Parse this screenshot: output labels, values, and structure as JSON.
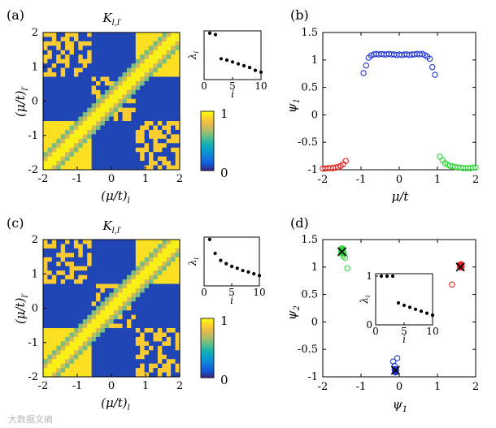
{
  "chart_data": [
    {
      "panel": "(a)",
      "type": "heatmap",
      "title": "K_{l,l'}",
      "xlabel": "(μ/t)_l",
      "ylabel": "(μ/t)_l'",
      "xticks": [
        "-2",
        "-1",
        "0",
        "1",
        "2"
      ],
      "yticks": [
        "2",
        "1",
        "0",
        "-1",
        "-2"
      ],
      "xlim": [
        -2,
        2
      ],
      "ylim": [
        -2,
        2
      ],
      "grid_size": 31,
      "colormap": "parula",
      "colorbar": {
        "ticks": [
          "1",
          "0"
        ],
        "range": [
          0,
          1
        ]
      },
      "inset": {
        "type": "scatter",
        "xlabel": "i",
        "ylabel": "λ_i",
        "xticks": [
          "0",
          "5",
          "10"
        ],
        "x": [
          1,
          2,
          3,
          4,
          5,
          6,
          7,
          8,
          9,
          10
        ],
        "y": [
          1.0,
          0.97,
          0.45,
          0.42,
          0.38,
          0.34,
          0.3,
          0.26,
          0.2,
          0.16
        ],
        "ylim": [
          0,
          1.05
        ]
      }
    },
    {
      "panel": "(b)",
      "type": "scatter",
      "xlabel": "μ/t",
      "ylabel": "ψ_1",
      "xlim": [
        -2,
        2
      ],
      "ylim": [
        -1,
        1.5
      ],
      "xticks": [
        "-2",
        "-1",
        "0",
        "1",
        "2"
      ],
      "yticks": [
        "1.5",
        "1",
        "0.5",
        "0",
        "-0.5",
        "-1"
      ],
      "series": [
        {
          "name": "red",
          "color": "#e8231f",
          "x": [
            -2.0,
            -1.933,
            -1.867,
            -1.8,
            -1.733,
            -1.667,
            -1.6,
            -1.533,
            -1.467,
            -1.4
          ],
          "y": [
            -0.98,
            -0.98,
            -0.97,
            -0.97,
            -0.97,
            -0.96,
            -0.95,
            -0.93,
            -0.9,
            -0.84
          ]
        },
        {
          "name": "blue",
          "color": "#2437d4",
          "x": [
            -0.933,
            -0.867,
            -0.8,
            -0.733,
            -0.667,
            -0.6,
            -0.533,
            -0.467,
            -0.4,
            -0.333,
            -0.267,
            -0.2,
            -0.133,
            -0.067,
            0.0,
            0.067,
            0.133,
            0.2,
            0.267,
            0.333,
            0.4,
            0.467,
            0.533,
            0.6,
            0.667,
            0.733,
            0.8,
            0.867,
            0.933
          ],
          "y": [
            0.76,
            0.9,
            1.04,
            1.08,
            1.1,
            1.11,
            1.1,
            1.11,
            1.1,
            1.1,
            1.11,
            1.1,
            1.1,
            1.09,
            1.1,
            1.09,
            1.1,
            1.1,
            1.09,
            1.1,
            1.1,
            1.11,
            1.1,
            1.11,
            1.09,
            1.06,
            1.02,
            0.87,
            0.73
          ]
        },
        {
          "name": "green",
          "color": "#2fd63a",
          "x": [
            1.067,
            1.133,
            1.2,
            1.267,
            1.333,
            1.4,
            1.467,
            1.533,
            1.6,
            1.667,
            1.733,
            1.8,
            1.867,
            1.933,
            2.0
          ],
          "y": [
            -0.76,
            -0.83,
            -0.88,
            -0.91,
            -0.93,
            -0.94,
            -0.95,
            -0.96,
            -0.96,
            -0.97,
            -0.97,
            -0.97,
            -0.97,
            -0.96,
            -0.96
          ]
        }
      ]
    },
    {
      "panel": "(c)",
      "type": "heatmap",
      "title": "K_{l,l'}",
      "xlabel": "(μ/t)_l",
      "ylabel": "(μ/t)_l'",
      "xticks": [
        "-2",
        "-1",
        "0",
        "1",
        "2"
      ],
      "yticks": [
        "2",
        "1",
        "0",
        "-1",
        "-2"
      ],
      "xlim": [
        -2,
        2
      ],
      "ylim": [
        -2,
        2
      ],
      "grid_size": 31,
      "colormap": "parula",
      "colorbar": {
        "ticks": [
          "1",
          "0"
        ],
        "range": [
          0,
          1
        ]
      },
      "inset": {
        "type": "scatter",
        "xlabel": "i",
        "ylabel": "λ_i",
        "xticks": [
          "0",
          "5",
          "10"
        ],
        "x": [
          1,
          2,
          3,
          4,
          5,
          6,
          7,
          8,
          9,
          10
        ],
        "y": [
          1.0,
          0.7,
          0.55,
          0.48,
          0.42,
          0.38,
          0.33,
          0.3,
          0.26,
          0.22
        ],
        "ylim": [
          0,
          1.05
        ]
      }
    },
    {
      "panel": "(d)",
      "type": "scatter",
      "xlabel": "ψ_1",
      "ylabel": "ψ_2",
      "xlim": [
        -2,
        2
      ],
      "ylim": [
        -1,
        1.5
      ],
      "xticks": [
        "-2",
        "-1",
        "0",
        "1",
        "2"
      ],
      "yticks": [
        "1.5",
        "1",
        "0.5",
        "0",
        "-0.5",
        "-1"
      ],
      "series": [
        {
          "name": "green",
          "color": "#2fd63a",
          "x": [
            -1.5,
            -1.48,
            -1.52,
            -1.47,
            -1.5,
            -1.49,
            -1.51,
            -1.46,
            -1.5,
            -1.45,
            -1.42,
            -1.48,
            -1.5,
            -1.47,
            -1.36
          ],
          "y": [
            1.32,
            1.3,
            1.28,
            1.33,
            1.25,
            1.29,
            1.34,
            1.27,
            1.3,
            1.24,
            1.17,
            1.31,
            1.26,
            1.2,
            0.98
          ]
        },
        {
          "name": "blue",
          "color": "#2437d4",
          "x": [
            -0.12,
            -0.1,
            -0.09,
            -0.11,
            -0.1,
            -0.08,
            -0.1,
            -0.09,
            -0.12,
            -0.1,
            -0.11,
            -0.09,
            -0.1,
            -0.1,
            -0.11,
            -0.09,
            -0.1,
            -0.1,
            -0.09,
            -0.1,
            -0.11,
            -0.1,
            -0.1,
            -0.09,
            -0.1,
            -0.16,
            -0.05,
            -0.12,
            -0.1
          ],
          "y": [
            -0.86,
            -0.88,
            -0.9,
            -0.87,
            -0.89,
            -0.88,
            -0.91,
            -0.86,
            -0.88,
            -0.9,
            -0.87,
            -0.89,
            -0.88,
            -0.9,
            -0.86,
            -0.89,
            -0.88,
            -0.87,
            -0.9,
            -0.88,
            -0.89,
            -0.87,
            -0.88,
            -0.9,
            -0.86,
            -0.72,
            -0.66,
            -0.8,
            -0.92
          ]
        },
        {
          "name": "red",
          "color": "#e8231f",
          "x": [
            1.62,
            1.6,
            1.63,
            1.58,
            1.61,
            1.62,
            1.59,
            1.6,
            1.63,
            1.38
          ],
          "y": [
            1.05,
            1.02,
            1.0,
            1.04,
            0.99,
            1.03,
            1.01,
            1.0,
            1.04,
            0.68
          ]
        }
      ],
      "markers": [
        {
          "symbol": "x",
          "x": -1.5,
          "y": 1.28
        },
        {
          "symbol": "x",
          "x": -0.1,
          "y": -0.88
        },
        {
          "symbol": "x",
          "x": 1.6,
          "y": 1.0
        }
      ],
      "inset": {
        "type": "scatter",
        "xlabel": "i",
        "ylabel": "λ_i",
        "xticks": [
          "0",
          "5",
          "10"
        ],
        "yticks": [
          "1",
          "0"
        ],
        "x": [
          1,
          2,
          3,
          4,
          5,
          6,
          7,
          8,
          9,
          10
        ],
        "y": [
          1.0,
          1.0,
          1.0,
          0.45,
          0.4,
          0.36,
          0.32,
          0.28,
          0.24,
          0.2
        ],
        "ylim": [
          0,
          1.05
        ]
      }
    }
  ],
  "watermark": "大数据文摘"
}
